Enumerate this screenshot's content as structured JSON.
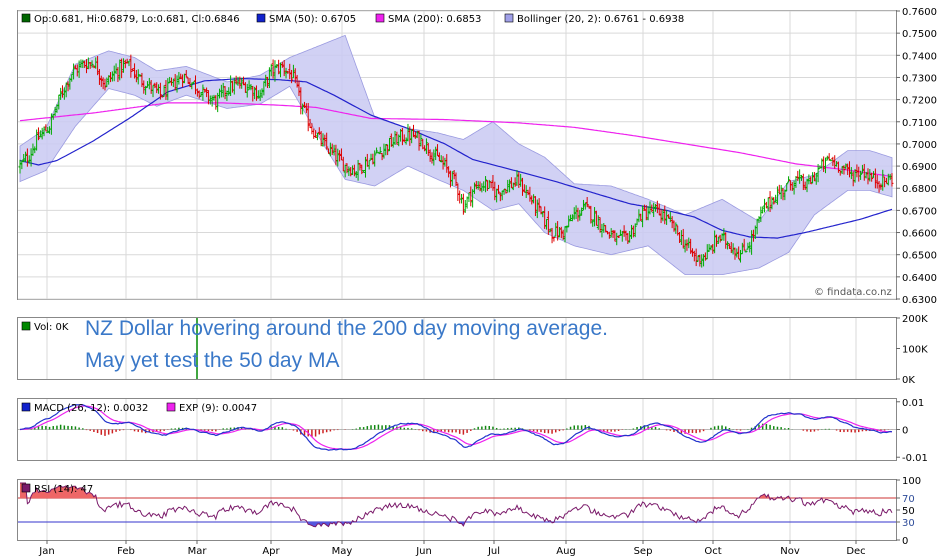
{
  "watermark": "© findata.co.nz",
  "annotation": {
    "line1": "NZ Dollar hovering around the 200 day moving average.",
    "line2": "May yet test the 50 day MA"
  },
  "colors": {
    "up": "#00aa00",
    "down": "#dd0000",
    "sma50": "#2222cc",
    "sma200": "#ee22ee",
    "band_fill": "#c9c9f2",
    "band_line": "#9a9ae0",
    "grid": "#d9d9d9",
    "macd": "#2233cc",
    "ema": "#ee22ee",
    "rsi": "#7a1a6a",
    "rsi_fill_over": "#ee6666",
    "rsi_fill_under": "#5555dd",
    "vol": "#008800",
    "rsi70": "#cc3333",
    "rsi30": "#3333cc"
  },
  "chart_data": [
    {
      "type": "line",
      "panel": "price",
      "legend": [
        {
          "label": "Op:0.681, Hi:0.6879, Lo:0.681, Cl:0.6846",
          "marker": "#006600"
        },
        {
          "label": "SMA (50): 0.6705",
          "marker": "#1122cc"
        },
        {
          "label": "SMA (200): 0.6853",
          "marker": "#ee22ee"
        },
        {
          "label": "Bollinger (20, 2): 0.6761 - 0.6938",
          "marker": "#a0a0e8"
        }
      ],
      "yticks": [
        "0.6300",
        "0.6400",
        "0.6500",
        "0.6600",
        "0.6700",
        "0.6800",
        "0.6900",
        "0.7000",
        "0.7100",
        "0.7200",
        "0.7300",
        "0.7400",
        "0.7500",
        "0.7600"
      ],
      "ylim": [
        0.63,
        0.76
      ],
      "xticks": [
        "Jan",
        "Feb",
        "Mar",
        "Apr",
        "May",
        "Jun",
        "Jul",
        "Aug",
        "Sep",
        "Oct",
        "Nov",
        "Dec"
      ],
      "close_anchors": [
        [
          0,
          0.69
        ],
        [
          5,
          0.695
        ],
        [
          10,
          0.703
        ],
        [
          16,
          0.708
        ],
        [
          22,
          0.722
        ],
        [
          28,
          0.732
        ],
        [
          34,
          0.736
        ],
        [
          40,
          0.737
        ],
        [
          46,
          0.727
        ],
        [
          52,
          0.733
        ],
        [
          58,
          0.736
        ],
        [
          64,
          0.73
        ],
        [
          70,
          0.726
        ],
        [
          76,
          0.722
        ],
        [
          82,
          0.726
        ],
        [
          88,
          0.731
        ],
        [
          94,
          0.727
        ],
        [
          100,
          0.722
        ],
        [
          106,
          0.719
        ],
        [
          112,
          0.725
        ],
        [
          118,
          0.727
        ],
        [
          124,
          0.726
        ],
        [
          130,
          0.722
        ],
        [
          136,
          0.733
        ],
        [
          142,
          0.735
        ],
        [
          148,
          0.73
        ],
        [
          152,
          0.718
        ],
        [
          158,
          0.707
        ],
        [
          164,
          0.7
        ],
        [
          170,
          0.695
        ],
        [
          176,
          0.69
        ],
        [
          182,
          0.688
        ],
        [
          188,
          0.692
        ],
        [
          194,
          0.696
        ],
        [
          200,
          0.7
        ],
        [
          206,
          0.703
        ],
        [
          212,
          0.704
        ],
        [
          218,
          0.701
        ],
        [
          224,
          0.695
        ],
        [
          230,
          0.69
        ],
        [
          236,
          0.682
        ],
        [
          240,
          0.672
        ],
        [
          246,
          0.68
        ],
        [
          252,
          0.682
        ],
        [
          258,
          0.678
        ],
        [
          264,
          0.681
        ],
        [
          270,
          0.683
        ],
        [
          276,
          0.676
        ],
        [
          282,
          0.668
        ],
        [
          288,
          0.66
        ],
        [
          294,
          0.66
        ],
        [
          300,
          0.668
        ],
        [
          306,
          0.671
        ],
        [
          312,
          0.666
        ],
        [
          318,
          0.66
        ],
        [
          324,
          0.656
        ],
        [
          330,
          0.659
        ],
        [
          336,
          0.668
        ],
        [
          342,
          0.67
        ],
        [
          348,
          0.668
        ],
        [
          354,
          0.662
        ],
        [
          360,
          0.655
        ],
        [
          366,
          0.648
        ],
        [
          372,
          0.65
        ],
        [
          378,
          0.658
        ],
        [
          384,
          0.655
        ],
        [
          390,
          0.65
        ],
        [
          396,
          0.657
        ],
        [
          402,
          0.67
        ],
        [
          408,
          0.676
        ],
        [
          414,
          0.68
        ],
        [
          420,
          0.684
        ],
        [
          426,
          0.681
        ],
        [
          432,
          0.688
        ],
        [
          438,
          0.693
        ],
        [
          444,
          0.69
        ],
        [
          450,
          0.686
        ],
        [
          456,
          0.688
        ],
        [
          462,
          0.684
        ],
        [
          468,
          0.683
        ],
        [
          472,
          0.6846
        ]
      ],
      "sma200_anchors": [
        [
          0,
          0.7105
        ],
        [
          40,
          0.714
        ],
        [
          80,
          0.7185
        ],
        [
          110,
          0.7185
        ],
        [
          140,
          0.7175
        ],
        [
          160,
          0.7165
        ],
        [
          190,
          0.7115
        ],
        [
          230,
          0.711
        ],
        [
          270,
          0.7095
        ],
        [
          300,
          0.7075
        ],
        [
          330,
          0.704
        ],
        [
          360,
          0.7
        ],
        [
          390,
          0.696
        ],
        [
          420,
          0.691
        ],
        [
          450,
          0.688
        ],
        [
          472,
          0.6853
        ]
      ],
      "sma50_anchors": [
        [
          0,
          0.6925
        ],
        [
          10,
          0.6905
        ],
        [
          20,
          0.6925
        ],
        [
          40,
          0.7015
        ],
        [
          60,
          0.712
        ],
        [
          80,
          0.7235
        ],
        [
          100,
          0.7285
        ],
        [
          120,
          0.7295
        ],
        [
          140,
          0.729
        ],
        [
          155,
          0.728
        ],
        [
          170,
          0.722
        ],
        [
          190,
          0.713
        ],
        [
          210,
          0.707
        ],
        [
          230,
          0.7
        ],
        [
          245,
          0.693
        ],
        [
          270,
          0.6875
        ],
        [
          290,
          0.683
        ],
        [
          310,
          0.678
        ],
        [
          330,
          0.673
        ],
        [
          350,
          0.67
        ],
        [
          365,
          0.667
        ],
        [
          380,
          0.661
        ],
        [
          395,
          0.658
        ],
        [
          410,
          0.6575
        ],
        [
          425,
          0.66
        ],
        [
          440,
          0.663
        ],
        [
          455,
          0.666
        ],
        [
          472,
          0.6705
        ]
      ],
      "bollinger_anchors": [
        [
          0,
          0.683,
          0.699
        ],
        [
          14,
          0.688,
          0.707
        ],
        [
          30,
          0.708,
          0.736
        ],
        [
          48,
          0.725,
          0.742
        ],
        [
          62,
          0.722,
          0.739
        ],
        [
          74,
          0.717,
          0.733
        ],
        [
          90,
          0.722,
          0.735
        ],
        [
          112,
          0.716,
          0.728
        ],
        [
          130,
          0.718,
          0.731
        ],
        [
          146,
          0.726,
          0.739
        ],
        [
          164,
          0.7,
          0.745
        ],
        [
          176,
          0.684,
          0.749
        ],
        [
          192,
          0.681,
          0.712
        ],
        [
          210,
          0.69,
          0.707
        ],
        [
          226,
          0.684,
          0.705
        ],
        [
          240,
          0.679,
          0.702
        ],
        [
          256,
          0.67,
          0.71
        ],
        [
          270,
          0.673,
          0.7
        ],
        [
          284,
          0.66,
          0.694
        ],
        [
          300,
          0.654,
          0.682
        ],
        [
          320,
          0.65,
          0.681
        ],
        [
          340,
          0.654,
          0.675
        ],
        [
          360,
          0.641,
          0.668
        ],
        [
          380,
          0.641,
          0.675
        ],
        [
          400,
          0.644,
          0.665
        ],
        [
          416,
          0.651,
          0.683
        ],
        [
          430,
          0.668,
          0.686
        ],
        [
          448,
          0.679,
          0.697
        ],
        [
          460,
          0.679,
          0.697
        ],
        [
          472,
          0.6761,
          0.6938
        ]
      ]
    },
    {
      "type": "bar",
      "panel": "volume",
      "legend": [
        {
          "label": "Vol: 0K",
          "marker": "#008800"
        }
      ],
      "yticks": [
        "200K",
        "100K",
        "0K"
      ],
      "ylim": [
        0,
        200000
      ]
    },
    {
      "type": "line",
      "panel": "macd",
      "legend": [
        {
          "label": "MACD (26, 12): 0.0032",
          "marker": "#1122cc"
        },
        {
          "label": "EXP (9): 0.0047",
          "marker": "#ee22ee"
        }
      ],
      "yticks": [
        "0.01",
        "0",
        "-0.01"
      ],
      "ylim": [
        -0.011,
        0.011
      ]
    },
    {
      "type": "line",
      "panel": "rsi",
      "legend": [
        {
          "label": "RSI (14): 47",
          "marker": "#7a1a6a"
        }
      ],
      "yticks": [
        "100",
        "70",
        "50",
        "30",
        "0"
      ],
      "ylim": [
        0,
        100
      ]
    }
  ]
}
